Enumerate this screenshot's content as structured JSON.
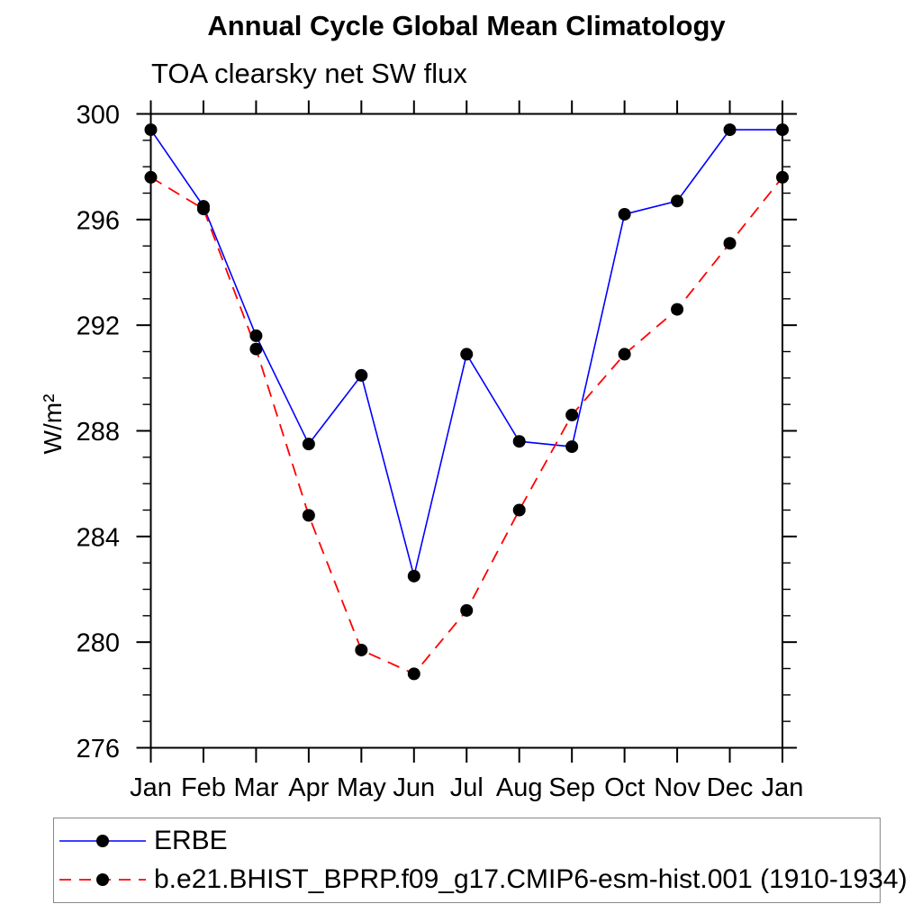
{
  "page": {
    "background": "#ffffff"
  },
  "chart_data": {
    "type": "line",
    "title": "Annual Cycle Global Mean Climatology",
    "subtitle": "TOA clearsky net SW flux",
    "ylabel": "W/m²",
    "xlabel": "",
    "categories": [
      "Jan",
      "Feb",
      "Mar",
      "Apr",
      "May",
      "Jun",
      "Jul",
      "Aug",
      "Sep",
      "Oct",
      "Nov",
      "Dec",
      "Jan"
    ],
    "ylim": [
      276,
      300
    ],
    "ytick_major": [
      276,
      280,
      284,
      288,
      292,
      296,
      300
    ],
    "ytick_minor_step": 1,
    "grid": false,
    "frame_color": "#000000",
    "marker_color": "#000000",
    "legend_position": "bottom-left-box",
    "legend_border_color": "#888888",
    "series": [
      {
        "name": "ERBE",
        "color": "#0000ff",
        "style": "solid",
        "marker": "circle",
        "values": [
          299.4,
          296.5,
          291.6,
          287.5,
          290.1,
          282.5,
          290.9,
          287.6,
          287.4,
          296.2,
          296.7,
          299.4,
          299.4
        ]
      },
      {
        "name": "b.e21.BHIST_BPRP.f09_g17.CMIP6-esm-hist.001 (1910-1934)",
        "color": "#ff0000",
        "style": "dashed",
        "marker": "circle",
        "values": [
          297.6,
          296.4,
          291.1,
          284.8,
          279.7,
          278.8,
          281.2,
          285.0,
          288.6,
          290.9,
          292.6,
          295.1,
          297.6
        ]
      }
    ]
  }
}
